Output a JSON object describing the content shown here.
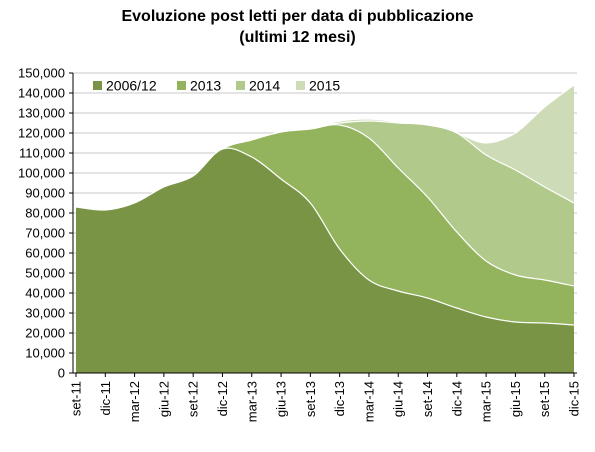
{
  "chart_data": {
    "type": "area",
    "stacked": false,
    "title": "Evoluzione post letti per data di pubblicazione",
    "subtitle": "(ultimi 12 mesi)",
    "x_labels": [
      "set-11",
      "dic-11",
      "mar-12",
      "giu-12",
      "set-12",
      "dic-12",
      "mar-13",
      "giu-13",
      "set-13",
      "dic-13",
      "mar-14",
      "giu-14",
      "set-14",
      "dic-14",
      "mar-15",
      "giu-15",
      "set-15",
      "dic-15"
    ],
    "ylim": [
      0,
      150000
    ],
    "y_ticks": [
      "0",
      "10,000",
      "20,000",
      "30,000",
      "40,000",
      "50,000",
      "60,000",
      "70,000",
      "80,000",
      "90,000",
      "100,000",
      "110,000",
      "120,000",
      "130,000",
      "140,000",
      "150,000"
    ],
    "grid": true,
    "legend_position": "top-left",
    "series": [
      {
        "name": "2015",
        "color": "#cddcb6",
        "values": [
          83000,
          81500,
          85000,
          93000,
          98500,
          112000,
          116500,
          120500,
          122500,
          126000,
          127000,
          125500,
          124500,
          120000,
          115000,
          120000,
          133000,
          144000
        ]
      },
      {
        "name": "2014",
        "color": "#b1c98b",
        "values": [
          83000,
          81500,
          85000,
          93000,
          98500,
          112000,
          116500,
          120500,
          122500,
          125000,
          126000,
          125000,
          124000,
          120000,
          109000,
          101500,
          93000,
          85000
        ]
      },
      {
        "name": "2013",
        "color": "#93b35c",
        "values": [
          83000,
          81500,
          85000,
          93000,
          98500,
          112000,
          116500,
          120500,
          122000,
          124000,
          117500,
          102500,
          88000,
          70500,
          56000,
          49000,
          46500,
          43500
        ]
      },
      {
        "name": "2006/12",
        "color": "#7a9446",
        "values": [
          83000,
          81500,
          85000,
          93000,
          98500,
          112000,
          108000,
          97000,
          85000,
          62000,
          46500,
          41000,
          37500,
          32500,
          28000,
          25500,
          25000,
          24000
        ]
      }
    ],
    "legend_order": [
      "2006/12",
      "2013",
      "2014",
      "2015"
    ]
  }
}
